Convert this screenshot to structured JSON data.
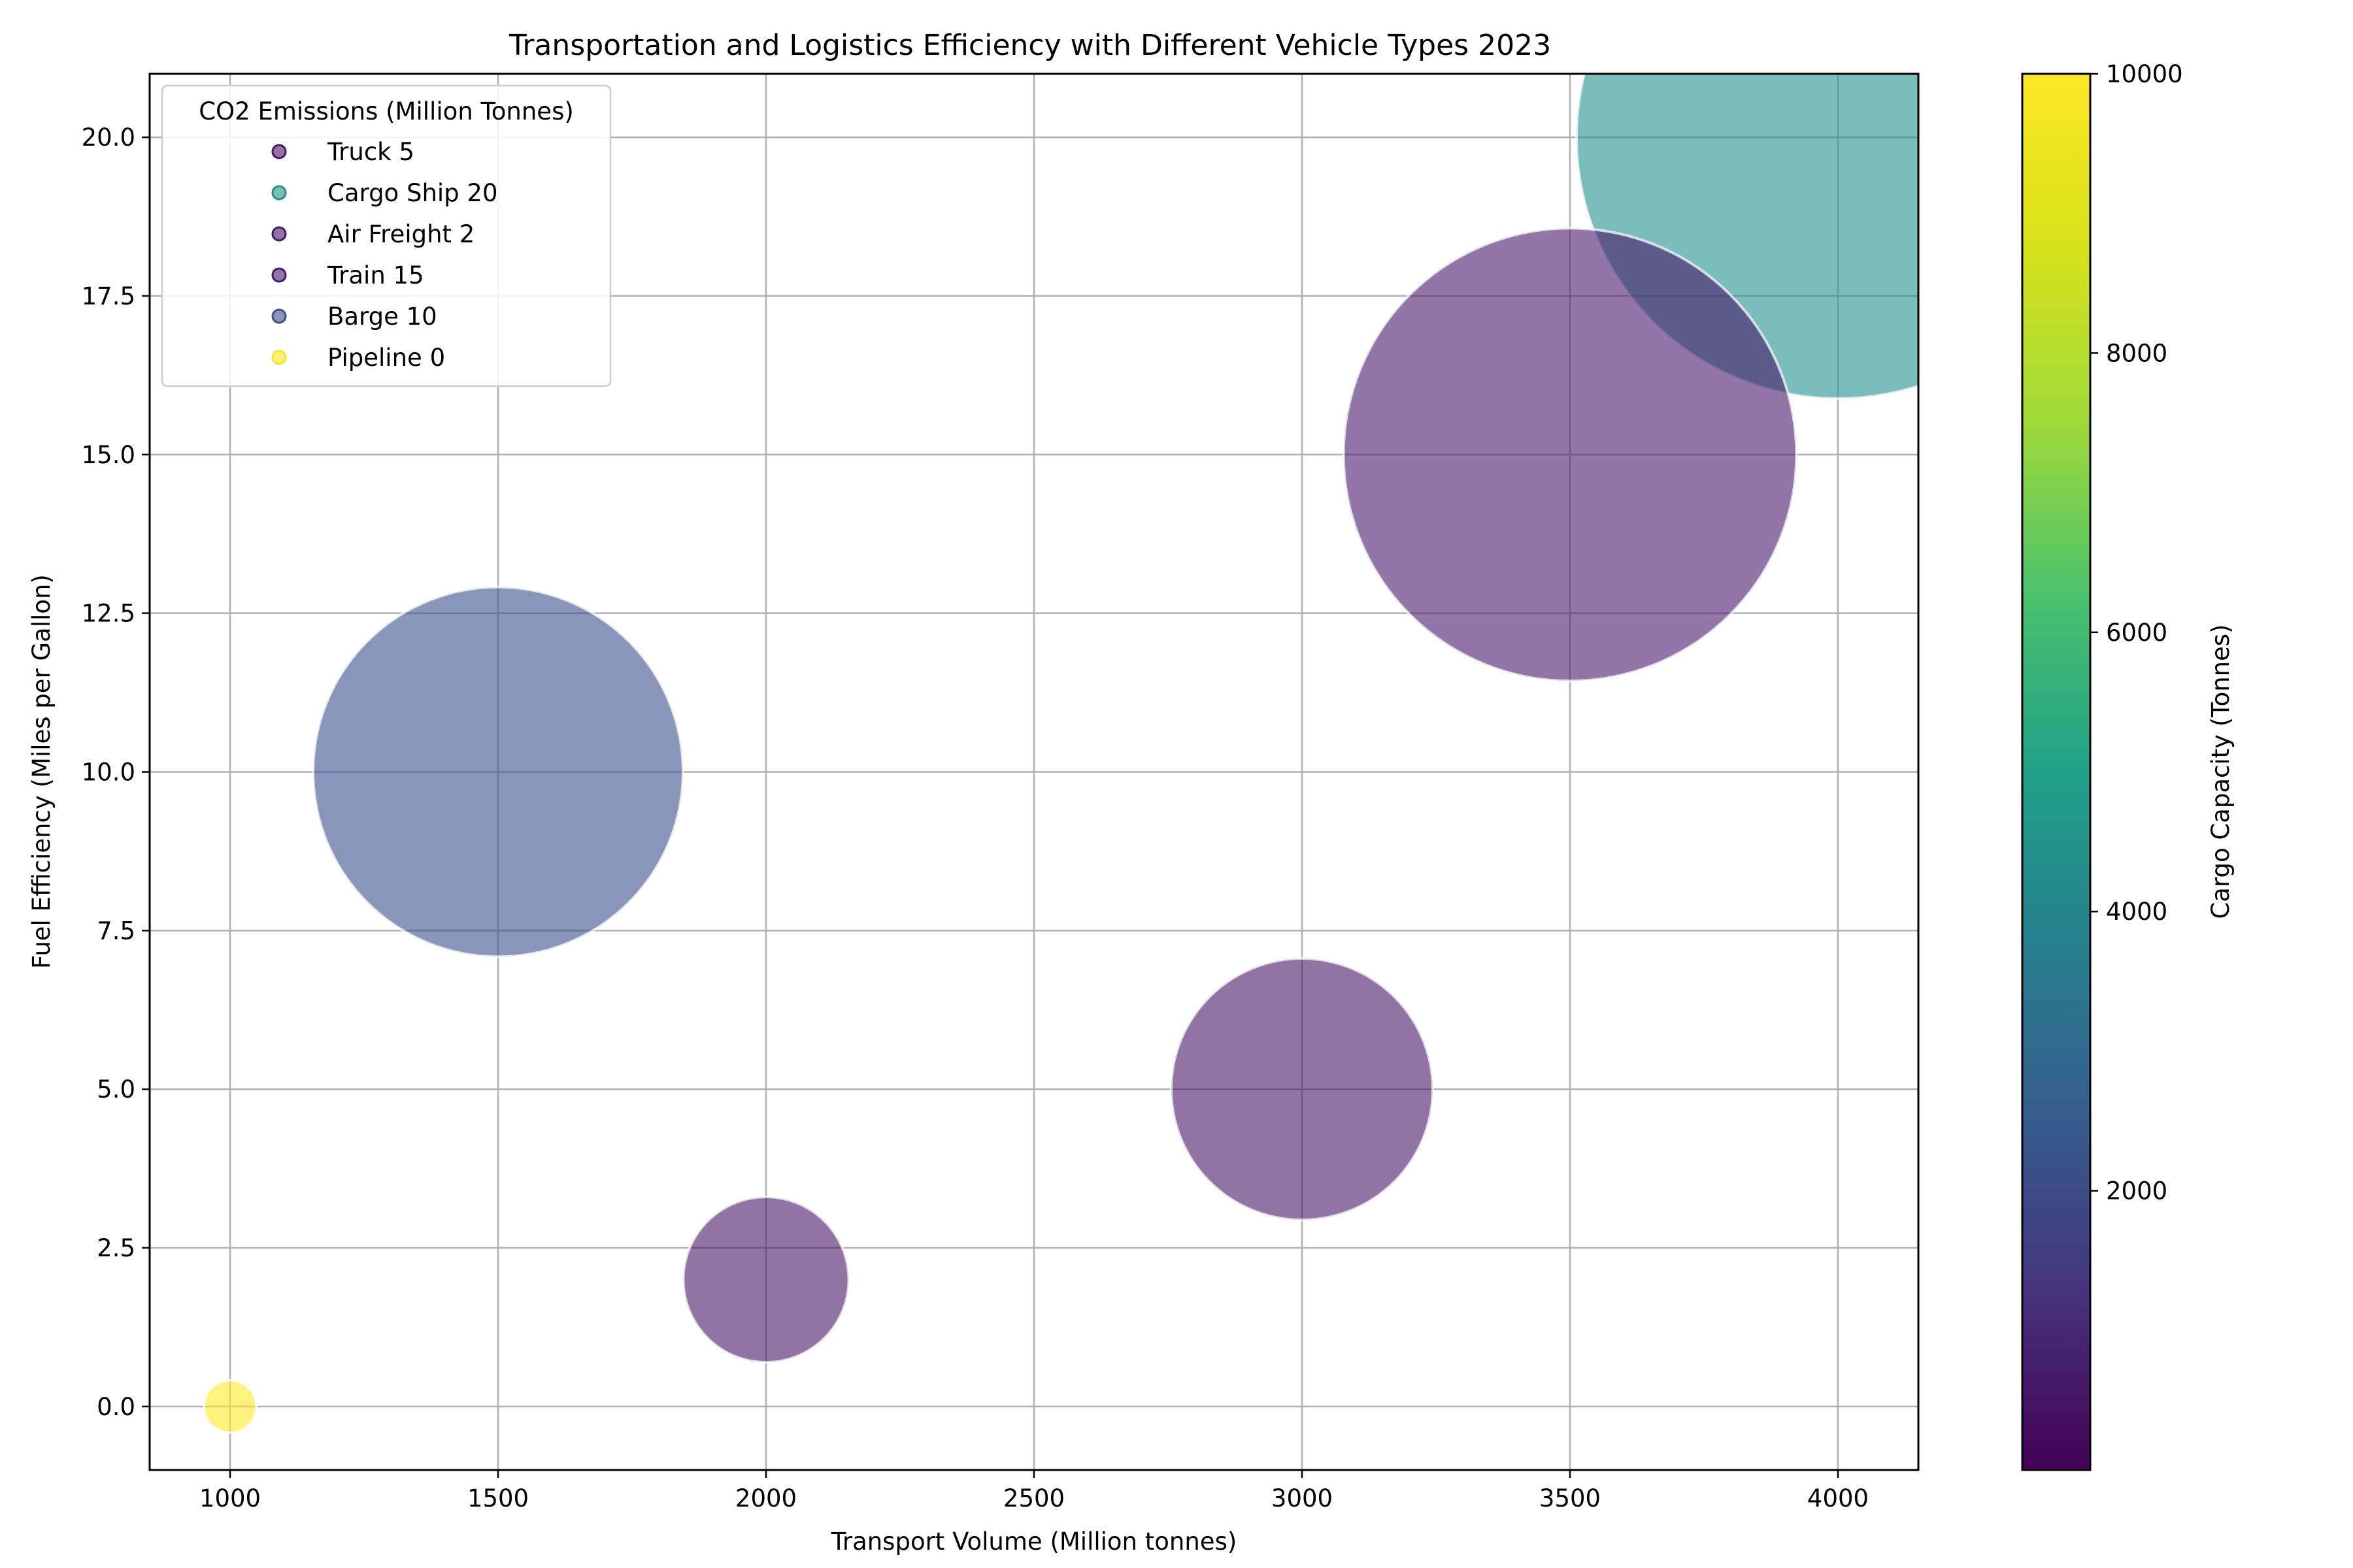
{
  "chart_data": {
    "type": "scatter",
    "title": "Transportation and Logistics Efficiency with Different Vehicle Types 2023",
    "xlabel": "Transport Volume (Million tonnes)",
    "ylabel": "Fuel Efficiency (Miles per Gallon)",
    "xlim": [
      850,
      4150
    ],
    "ylim": [
      -1,
      21
    ],
    "xticks": [
      "1000",
      "1500",
      "2000",
      "2500",
      "3000",
      "3500",
      "4000"
    ],
    "yticks": [
      "0.0",
      "2.5",
      "5.0",
      "7.5",
      "10.0",
      "12.5",
      "15.0",
      "17.5",
      "20.0"
    ],
    "grid": true,
    "legend": {
      "title": "CO2 Emissions (Million Tonnes)",
      "placement": "top-left",
      "entries": [
        "Truck 5",
        "Cargo Ship 20",
        "Air Freight 2",
        "Train 15",
        "Barge 10",
        "Pipeline 0"
      ]
    },
    "colorbar": {
      "label": "Cargo Capacity (Tonnes)",
      "range": [
        0,
        10000
      ],
      "ticks": [
        "2000",
        "4000",
        "6000",
        "8000",
        "10000"
      ],
      "colormap": [
        "#440154",
        "#3b528b",
        "#21918c",
        "#5ec962",
        "#fde725"
      ]
    },
    "series": [
      {
        "name": "Truck 5",
        "x": 3000,
        "y": 5,
        "co2": 5,
        "cargo_capacity": 20,
        "color": "#481668"
      },
      {
        "name": "Cargo Ship 20",
        "x": 4000,
        "y": 20,
        "co2": 20,
        "cargo_capacity": 5000,
        "color": "#21918c"
      },
      {
        "name": "Air Freight 2",
        "x": 2000,
        "y": 2,
        "co2": 2,
        "cargo_capacity": 50,
        "color": "#481668"
      },
      {
        "name": "Train 15",
        "x": 3500,
        "y": 15,
        "co2": 15,
        "cargo_capacity": 100,
        "color": "#481a6c"
      },
      {
        "name": "Barge 10",
        "x": 1500,
        "y": 10,
        "co2": 10,
        "cargo_capacity": 1500,
        "color": "#3b4f8a"
      },
      {
        "name": "Pipeline 0",
        "x": 1000,
        "y": 0,
        "co2": 0,
        "cargo_capacity": 10000,
        "color": "#fde725"
      }
    ]
  }
}
